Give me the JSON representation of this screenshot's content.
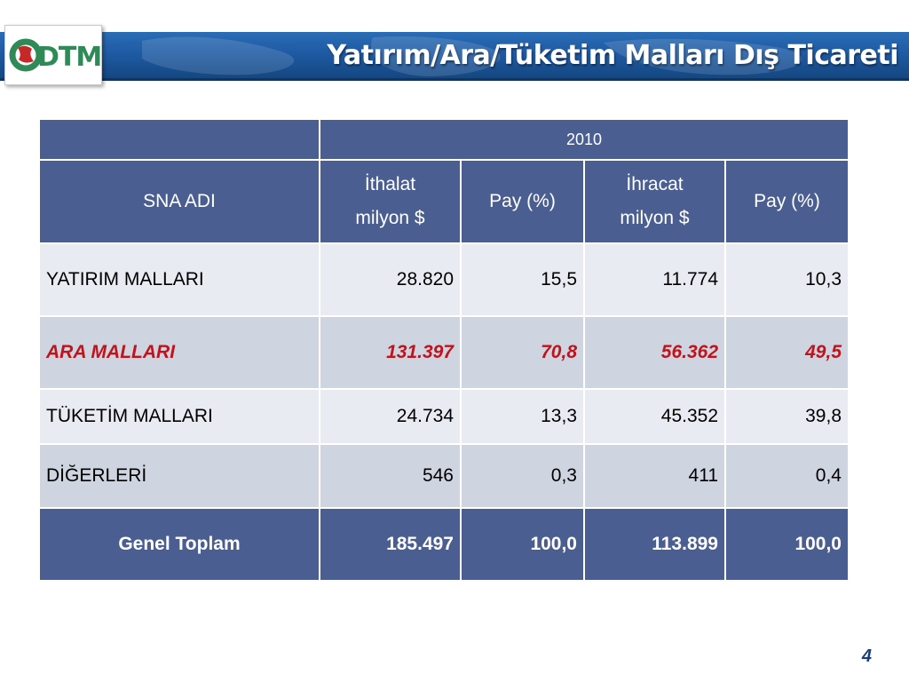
{
  "slide": {
    "title": "Yatırım/Ara/Tüketim Malları Dış Ticareti",
    "page_number": "4",
    "logo_text": "DTM",
    "colors": {
      "header_band": "#1e5aa3",
      "table_header": "#4a5e91",
      "row_light": "#e9ebf2",
      "row_dark": "#cfd4e1",
      "highlight_text": "#c0131b",
      "logo_green": "#2e8b57",
      "logo_red": "#c62828"
    }
  },
  "table": {
    "year": "2010",
    "columns": {
      "sna": "SNA ADI",
      "ithalat_line1": "İthalat",
      "ithalat_line2": "milyon $",
      "pay1": "Pay (%)",
      "ihracat_line1": "İhracat",
      "ihracat_line2": "milyon $",
      "pay2": "Pay (%)"
    },
    "rows": [
      {
        "name": "YATIRIM MALLARI",
        "ithalat": "28.820",
        "pay1": "15,5",
        "ihracat": "11.774",
        "pay2": "10,3"
      },
      {
        "name": "ARA MALLARI",
        "ithalat": "131.397",
        "pay1": "70,8",
        "ihracat": "56.362",
        "pay2": "49,5",
        "highlighted": true
      },
      {
        "name": "TÜKETİM MALLARI",
        "ithalat": "24.734",
        "pay1": "13,3",
        "ihracat": "45.352",
        "pay2": "39,8"
      },
      {
        "name": "DİĞERLERİ",
        "ithalat": "546",
        "pay1": "0,3",
        "ihracat": "411",
        "pay2": "0,4"
      }
    ],
    "total": {
      "name": "Genel Toplam",
      "ithalat": "185.497",
      "pay1": "100,0",
      "ihracat": "113.899",
      "pay2": "100,0"
    }
  }
}
